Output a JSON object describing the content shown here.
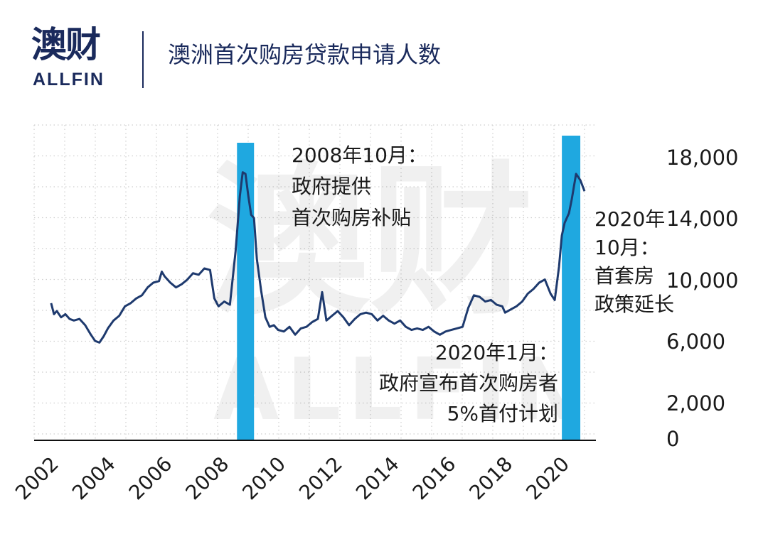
{
  "header": {
    "logo_cn": "澳财",
    "logo_en": "ALLFIN",
    "title": "澳洲首次购房贷款申请人数"
  },
  "watermark": {
    "cn": "澳财",
    "en": "ALLFIN"
  },
  "colors": {
    "line": "#1e3a6e",
    "highlight": "#1fa8e0",
    "text": "#1a1a1a",
    "brand": "#1a2a5c"
  },
  "chart_data": {
    "type": "line",
    "title": "澳洲首次购房贷款申请人数",
    "xlabel": "",
    "ylabel": "",
    "xlim": [
      2001.4,
      2021.2
    ],
    "ylim": [
      0,
      20000
    ],
    "grid": true,
    "x_tick_labels": [
      "2002",
      "2004",
      "2006",
      "2008",
      "2010",
      "2012",
      "2014",
      "2016",
      "2018",
      "2020"
    ],
    "y_ticks": [
      {
        "label": "18,000",
        "value": 18000
      },
      {
        "label": "14,000",
        "value": 14000
      },
      {
        "label": "10,000",
        "value": 10000
      },
      {
        "label": "6,000",
        "value": 6000
      },
      {
        "label": "2,000",
        "value": 2000
      },
      {
        "label": "0",
        "value": 0
      }
    ],
    "highlights": [
      {
        "start": 2008.55,
        "end": 2009.15
      },
      {
        "start": 2020.0,
        "end": 2020.65
      }
    ],
    "annotations": [
      {
        "lines": [
          "2008年10月：",
          "政府提供",
          "首次购房补贴"
        ]
      },
      {
        "lines": [
          "2020年1月：",
          "政府宣布首次购房者",
          "5%首付计划"
        ]
      },
      {
        "lines": [
          "2020年",
          "10月：",
          "首套房",
          "政策延长"
        ]
      }
    ],
    "series": [
      {
        "points": [
          [
            2002.0,
            8700
          ],
          [
            2002.1,
            8000
          ],
          [
            2002.2,
            8200
          ],
          [
            2002.35,
            7800
          ],
          [
            2002.5,
            8000
          ],
          [
            2002.65,
            7700
          ],
          [
            2002.8,
            7600
          ],
          [
            2003.0,
            7700
          ],
          [
            2003.2,
            7300
          ],
          [
            2003.4,
            6700
          ],
          [
            2003.55,
            6300
          ],
          [
            2003.7,
            6200
          ],
          [
            2003.85,
            6600
          ],
          [
            2004.0,
            7100
          ],
          [
            2004.2,
            7600
          ],
          [
            2004.4,
            7900
          ],
          [
            2004.6,
            8500
          ],
          [
            2004.8,
            8700
          ],
          [
            2005.0,
            9000
          ],
          [
            2005.2,
            9200
          ],
          [
            2005.4,
            9700
          ],
          [
            2005.6,
            10000
          ],
          [
            2005.8,
            10100
          ],
          [
            2005.9,
            10700
          ],
          [
            2006.0,
            10400
          ],
          [
            2006.2,
            10000
          ],
          [
            2006.4,
            9700
          ],
          [
            2006.6,
            9900
          ],
          [
            2006.8,
            10200
          ],
          [
            2007.0,
            10600
          ],
          [
            2007.2,
            10500
          ],
          [
            2007.4,
            10900
          ],
          [
            2007.6,
            10800
          ],
          [
            2007.75,
            9000
          ],
          [
            2007.9,
            8500
          ],
          [
            2008.1,
            8800
          ],
          [
            2008.3,
            8600
          ],
          [
            2008.5,
            12000
          ],
          [
            2008.65,
            15500
          ],
          [
            2008.75,
            17000
          ],
          [
            2008.85,
            16900
          ],
          [
            2008.95,
            15500
          ],
          [
            2009.05,
            14300
          ],
          [
            2009.15,
            14100
          ],
          [
            2009.25,
            11500
          ],
          [
            2009.4,
            9500
          ],
          [
            2009.55,
            7800
          ],
          [
            2009.7,
            7200
          ],
          [
            2009.85,
            7300
          ],
          [
            2010.0,
            7000
          ],
          [
            2010.2,
            6900
          ],
          [
            2010.4,
            7200
          ],
          [
            2010.6,
            6700
          ],
          [
            2010.8,
            7100
          ],
          [
            2011.0,
            7200
          ],
          [
            2011.2,
            7500
          ],
          [
            2011.4,
            7700
          ],
          [
            2011.55,
            9400
          ],
          [
            2011.7,
            7600
          ],
          [
            2011.9,
            7900
          ],
          [
            2012.1,
            8200
          ],
          [
            2012.3,
            7800
          ],
          [
            2012.5,
            7300
          ],
          [
            2012.7,
            7700
          ],
          [
            2012.9,
            8000
          ],
          [
            2013.1,
            8100
          ],
          [
            2013.3,
            8000
          ],
          [
            2013.5,
            7600
          ],
          [
            2013.7,
            7900
          ],
          [
            2013.9,
            7600
          ],
          [
            2014.1,
            7400
          ],
          [
            2014.3,
            7600
          ],
          [
            2014.5,
            7200
          ],
          [
            2014.7,
            7000
          ],
          [
            2014.9,
            7100
          ],
          [
            2015.1,
            7000
          ],
          [
            2015.3,
            7200
          ],
          [
            2015.5,
            6900
          ],
          [
            2015.7,
            6700
          ],
          [
            2015.9,
            6900
          ],
          [
            2016.1,
            7000
          ],
          [
            2016.3,
            7100
          ],
          [
            2016.5,
            7200
          ],
          [
            2016.7,
            8400
          ],
          [
            2016.9,
            9200
          ],
          [
            2017.1,
            9100
          ],
          [
            2017.3,
            8800
          ],
          [
            2017.5,
            8900
          ],
          [
            2017.7,
            8600
          ],
          [
            2017.9,
            8500
          ],
          [
            2018.0,
            8100
          ],
          [
            2018.2,
            8300
          ],
          [
            2018.4,
            8500
          ],
          [
            2018.6,
            8800
          ],
          [
            2018.8,
            9300
          ],
          [
            2019.0,
            9600
          ],
          [
            2019.2,
            10000
          ],
          [
            2019.4,
            10200
          ],
          [
            2019.6,
            9300
          ],
          [
            2019.75,
            8900
          ],
          [
            2019.9,
            11000
          ],
          [
            2020.0,
            13000
          ],
          [
            2020.1,
            13800
          ],
          [
            2020.25,
            14400
          ],
          [
            2020.35,
            15300
          ],
          [
            2020.5,
            16900
          ],
          [
            2020.65,
            16500
          ],
          [
            2020.8,
            15800
          ]
        ]
      }
    ]
  }
}
